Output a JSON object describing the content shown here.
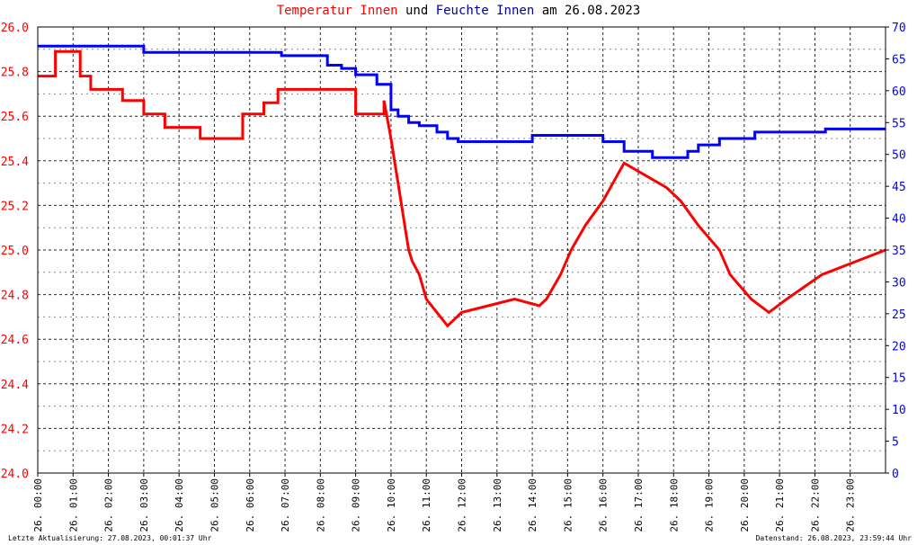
{
  "title": {
    "part1": "Temperatur Innen",
    "part2": " und ",
    "part3": "Feuchte Innen",
    "part4": " am 26.08.2023"
  },
  "footer": {
    "left": "Letzte Aktualisierung: 27.08.2023, 00:01:37 Uhr",
    "right": "Datenstand: 26.08.2023, 23:59:44 Uhr"
  },
  "colors": {
    "temperature": "#ff0000",
    "humidity": "#0000ff",
    "left_axis": "#ff0000",
    "right_axis": "#0000ff",
    "grid": "#000000"
  },
  "chart_data": {
    "type": "line",
    "x_range": [
      0,
      24
    ],
    "x_tick_labels": [
      "26. 00:00",
      "26. 01:00",
      "26. 02:00",
      "26. 03:00",
      "26. 04:00",
      "26. 05:00",
      "26. 06:00",
      "26. 07:00",
      "26. 08:00",
      "26. 09:00",
      "26. 10:00",
      "26. 11:00",
      "26. 12:00",
      "26. 13:00",
      "26. 14:00",
      "26. 15:00",
      "26. 16:00",
      "26. 17:00",
      "26. 18:00",
      "26. 19:00",
      "26. 20:00",
      "26. 21:00",
      "26. 22:00",
      "26. 23:00"
    ],
    "y_left": {
      "range": [
        24.0,
        26.0
      ],
      "ticks": [
        "24.0",
        "24.2",
        "24.4",
        "24.6",
        "24.8",
        "25.0",
        "25.2",
        "25.4",
        "25.6",
        "25.8",
        "26.0"
      ]
    },
    "y_right": {
      "range": [
        0,
        70
      ],
      "ticks": [
        "0",
        "5",
        "10",
        "15",
        "20",
        "25",
        "30",
        "35",
        "40",
        "45",
        "50",
        "55",
        "60",
        "65",
        "70"
      ]
    },
    "grid": true,
    "series": [
      {
        "name": "Temperatur Innen",
        "axis": "left",
        "x": [
          0,
          0.5,
          0.5,
          1.2,
          1.2,
          1.5,
          1.5,
          2.4,
          2.4,
          3.0,
          3.0,
          3.6,
          3.6,
          4.6,
          4.6,
          5.8,
          5.8,
          6.4,
          6.4,
          6.8,
          6.8,
          9.0,
          9.0,
          9.8,
          9.8,
          10.0,
          10.1,
          10.2,
          10.3,
          10.4,
          10.5,
          10.6,
          10.8,
          10.8,
          11.0,
          11.0,
          11.3,
          11.3,
          11.6,
          11.6,
          12.0,
          12.0,
          13.0,
          13.0,
          13.5,
          13.5,
          14.2,
          14.2,
          14.4,
          14.4,
          14.8,
          14.8,
          15.1,
          15.1,
          15.5,
          15.5,
          16.0,
          16.0,
          16.6,
          16.6,
          17.8,
          17.8,
          18.2,
          18.2,
          18.7,
          18.7,
          19.3,
          19.3,
          19.6,
          19.6,
          20.2,
          20.2,
          20.7,
          20.7,
          21.2,
          21.2,
          22.2,
          22.2,
          24.0
        ],
        "y": [
          25.78,
          25.78,
          25.89,
          25.89,
          25.78,
          25.78,
          25.72,
          25.72,
          25.67,
          25.67,
          25.61,
          25.61,
          25.55,
          25.55,
          25.5,
          25.5,
          25.61,
          25.61,
          25.66,
          25.66,
          25.72,
          25.72,
          25.61,
          25.61,
          25.67,
          25.5,
          25.4,
          25.3,
          25.2,
          25.1,
          25.0,
          24.95,
          24.89,
          24.89,
          24.78,
          24.78,
          24.72,
          24.72,
          24.66,
          24.66,
          24.72,
          24.72,
          24.76,
          24.76,
          24.78,
          24.78,
          24.75,
          24.75,
          24.78,
          24.78,
          24.89,
          24.89,
          25.0,
          25.0,
          25.11,
          25.11,
          25.22,
          25.22,
          25.39,
          25.39,
          25.28,
          25.28,
          25.22,
          25.22,
          25.11,
          25.11,
          25.0,
          25.0,
          24.89,
          24.89,
          24.78,
          24.78,
          24.72,
          24.72,
          24.78,
          24.78,
          24.89,
          24.89,
          25.0
        ]
      },
      {
        "name": "Feuchte Innen",
        "axis": "right",
        "x": [
          0,
          3.0,
          3.0,
          6.9,
          6.9,
          8.2,
          8.2,
          8.6,
          8.6,
          9.0,
          9.0,
          9.6,
          9.6,
          10.0,
          10.0,
          10.2,
          10.2,
          10.5,
          10.5,
          10.8,
          10.8,
          11.3,
          11.3,
          11.6,
          11.6,
          11.9,
          11.9,
          14.0,
          14.0,
          16.0,
          16.0,
          16.6,
          16.6,
          17.4,
          17.4,
          18.4,
          18.4,
          18.7,
          18.7,
          19.3,
          19.3,
          20.3,
          20.3,
          22.3,
          22.3,
          24.0
        ],
        "y": [
          67.0,
          67.0,
          66.0,
          66.0,
          65.5,
          65.5,
          64.0,
          64.0,
          63.5,
          63.5,
          62.5,
          62.5,
          61.0,
          61.0,
          57.0,
          57.0,
          56.0,
          56.0,
          55.0,
          55.0,
          54.5,
          54.5,
          53.5,
          53.5,
          52.5,
          52.5,
          52.0,
          52.0,
          53.0,
          53.0,
          52.0,
          52.0,
          50.5,
          50.5,
          49.5,
          49.5,
          50.5,
          50.5,
          51.5,
          51.5,
          52.5,
          52.5,
          53.5,
          53.5,
          54.0,
          54.0
        ]
      }
    ]
  }
}
